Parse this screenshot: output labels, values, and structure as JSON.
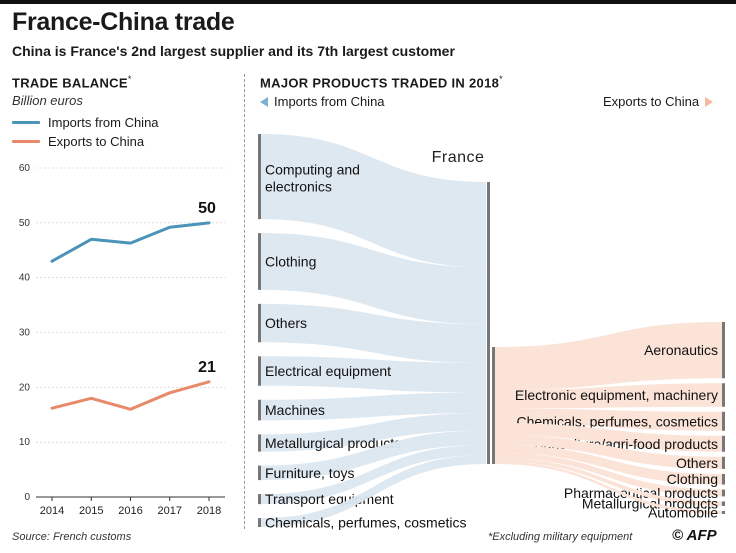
{
  "header": {
    "title": "France-China trade",
    "subtitle": "China is France's 2nd largest supplier and its 7th largest customer"
  },
  "trade_balance": {
    "heading": "Trade balance",
    "asterisk": "*",
    "units": "Billion euros",
    "legend_imports": "Imports from China",
    "legend_exports": "Exports to China"
  },
  "products": {
    "heading": "Major products traded in 2018",
    "asterisk": "*",
    "legend_imports": "Imports from China",
    "legend_exports": "Exports to China",
    "center_label": "France"
  },
  "footer": {
    "source": "Source: French customs",
    "note": "*Excluding military equipment",
    "brand": "© AFP"
  },
  "colors": {
    "imports": "#4b93b8",
    "exports": "#e8896a",
    "imports_fill": "#dce7f0",
    "exports_fill": "#fbe3d8",
    "bar": "#777777"
  },
  "chart_data": [
    {
      "type": "line",
      "title": "Trade balance",
      "ylabel": "Billion euros",
      "x": [
        2014,
        2015,
        2016,
        2017,
        2018
      ],
      "xticks": [
        "2014",
        "2015",
        "2016",
        "2017",
        "2018"
      ],
      "ylim": [
        0,
        60
      ],
      "yticks": [
        0,
        10,
        20,
        30,
        40,
        50,
        60
      ],
      "series": [
        {
          "name": "Imports from China",
          "values": [
            43,
            47,
            46.3,
            49.2,
            50
          ],
          "end_label": "50"
        },
        {
          "name": "Exports to China",
          "values": [
            16.2,
            18,
            16,
            19,
            21
          ],
          "end_label": "21"
        }
      ]
    },
    {
      "type": "sankey",
      "title": "Major products traded in 2018",
      "imports": [
        {
          "label": "Computing and electronics",
          "value": 15.3
        },
        {
          "label": "Clothing",
          "value": 10.2
        },
        {
          "label": "Others",
          "value": 6.9
        },
        {
          "label": "Electrical equipment",
          "value": 5.3
        },
        {
          "label": "Machines",
          "value": 3.7
        },
        {
          "label": "Metallurgical products",
          "value": 3.1
        },
        {
          "label": "Furniture, toys",
          "value": 2.6
        },
        {
          "label": "Transport equipment",
          "value": 1.8
        },
        {
          "label": "Chemicals, perfumes, cosmetics",
          "value": 1.6
        }
      ],
      "exports": [
        {
          "label": "Aeronautics",
          "value": 7.4
        },
        {
          "label": "Electronic equipment, machinery",
          "value": 3.1
        },
        {
          "label": "Chemicals, perfumes, cosmetics",
          "value": 2.5
        },
        {
          "label": "Agriculture/agri-food products",
          "value": 2.1
        },
        {
          "label": "Others",
          "value": 1.6
        },
        {
          "label": "Clothing",
          "value": 1.4
        },
        {
          "label": "Pharmaceutical products",
          "value": 0.9
        },
        {
          "label": "Metallurgical products",
          "value": 0.6
        },
        {
          "label": "Automobile",
          "value": 0.4
        }
      ]
    }
  ]
}
